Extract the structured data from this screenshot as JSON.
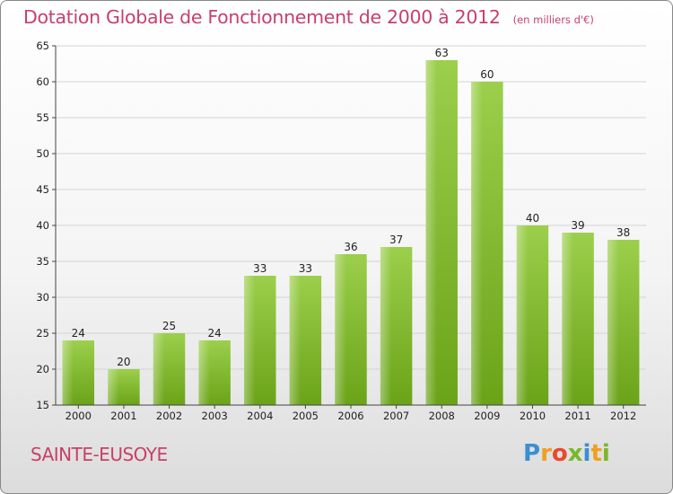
{
  "chart_data": {
    "type": "bar",
    "title": "Dotation Globale de Fonctionnement de 2000 à 2012",
    "subtitle": "(en milliers d'€)",
    "categories": [
      "2000",
      "2001",
      "2002",
      "2003",
      "2004",
      "2005",
      "2006",
      "2007",
      "2008",
      "2009",
      "2010",
      "2011",
      "2012"
    ],
    "values": [
      24,
      20,
      25,
      24,
      33,
      33,
      36,
      37,
      63,
      60,
      40,
      39,
      38
    ],
    "ylim": [
      15,
      65
    ],
    "yticks": [
      15,
      20,
      25,
      30,
      35,
      40,
      45,
      50,
      55,
      60,
      65
    ],
    "grid": true,
    "bar_color_top": "#9ccf4c",
    "bar_color_bottom": "#6aa318"
  },
  "footer": {
    "commune": "SAINTE-EUSOYE",
    "logo": "Proxiti"
  }
}
